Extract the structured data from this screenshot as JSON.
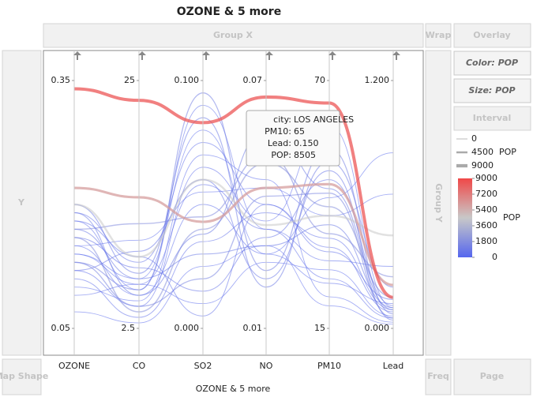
{
  "title": "OZONE & 5 more",
  "x_title": "OZONE & 5 more",
  "zones": {
    "group_x": "Group X",
    "wrap": "Wrap",
    "overlay": "Overlay",
    "color": "Color: POP",
    "size": "Size: POP",
    "interval": "Interval",
    "y": "Y",
    "group_y": "Group Y",
    "map_shape": "Map Shape",
    "freq": "Freq",
    "page": "Page"
  },
  "chart_data": {
    "type": "parallel",
    "axes": [
      {
        "name": "OZONE",
        "lim": [
          0.05,
          0.35
        ],
        "ticks": [
          0.35,
          0.05
        ]
      },
      {
        "name": "CO",
        "lim": [
          2.5,
          25
        ],
        "ticks": [
          25,
          2.5
        ]
      },
      {
        "name": "SO2",
        "lim": [
          0,
          0.1
        ],
        "ticks": [
          {
            "value": 0.1,
            "label": "0.100"
          },
          {
            "value": 0,
            "label": "0.000"
          }
        ]
      },
      {
        "name": "NO",
        "lim": [
          0.01,
          0.07
        ],
        "ticks": [
          0.07,
          0.01
        ]
      },
      {
        "name": "PM10",
        "lim": [
          15,
          70
        ],
        "ticks": [
          70,
          15
        ]
      },
      {
        "name": "Lead",
        "lim": [
          0,
          1.2
        ],
        "ticks": [
          {
            "value": 1.2,
            "label": "1.200"
          },
          {
            "value": 0,
            "label": "0.000"
          }
        ]
      }
    ],
    "color_scale": {
      "title": "POP",
      "colors": [
        "#5566ee",
        "#c8c8c8",
        "#f04848"
      ],
      "ticks": [
        9000,
        7200,
        5400,
        3600,
        1800,
        0
      ]
    },
    "size_legend": {
      "title": "POP",
      "values": [
        0,
        4500,
        9000
      ]
    },
    "series": [
      {
        "pop": 900,
        "values": [
          0.17,
          7.0,
          0.03,
          0.03,
          38,
          0.1
        ]
      },
      {
        "pop": 600,
        "values": [
          0.19,
          8.5,
          0.075,
          0.04,
          33,
          0.08
        ]
      },
      {
        "pop": 400,
        "values": [
          0.15,
          5.5,
          0.05,
          0.028,
          25,
          0.12
        ]
      },
      {
        "pop": 1500,
        "values": [
          0.13,
          4.5,
          0.02,
          0.042,
          45,
          0.05
        ]
      },
      {
        "pop": 300,
        "values": [
          0.18,
          6.0,
          0.09,
          0.034,
          30,
          0.3
        ]
      },
      {
        "pop": 800,
        "values": [
          0.12,
          9.5,
          0.06,
          0.022,
          50,
          0.04
        ]
      },
      {
        "pop": 2000,
        "values": [
          0.16,
          4.0,
          0.04,
          0.05,
          42,
          0.15
        ]
      },
      {
        "pop": 200,
        "values": [
          0.14,
          6.5,
          0.01,
          0.026,
          28,
          0.06
        ]
      },
      {
        "pop": 500,
        "values": [
          0.11,
          3.5,
          0.035,
          0.038,
          35,
          0.09
        ]
      },
      {
        "pop": 1100,
        "values": [
          0.2,
          7.5,
          0.085,
          0.02,
          52,
          0.2
        ]
      },
      {
        "pop": 250,
        "values": [
          0.1,
          5.0,
          0.07,
          0.046,
          22,
          0.03
        ]
      },
      {
        "pop": 700,
        "values": [
          0.16,
          8.0,
          0.015,
          0.032,
          48,
          0.11
        ]
      },
      {
        "pop": 150,
        "values": [
          0.15,
          10.5,
          0.055,
          0.044,
          40,
          0.65
        ]
      },
      {
        "pop": 1300,
        "values": [
          0.13,
          6.0,
          0.095,
          0.024,
          55,
          0.07
        ]
      },
      {
        "pop": 100,
        "values": [
          0.07,
          3.0,
          0.025,
          0.03,
          20,
          0.02
        ]
      },
      {
        "pop": 1800,
        "values": [
          0.17,
          12.0,
          0.045,
          0.052,
          36,
          0.25
        ]
      },
      {
        "pop": 350,
        "values": [
          0.12,
          4.5,
          0.065,
          0.036,
          60,
          0.1
        ]
      },
      {
        "pop": 120,
        "values": [
          0.14,
          7.0,
          0.08,
          0.028,
          44,
          0.85
        ]
      },
      {
        "pop": 650,
        "values": [
          0.18,
          9.0,
          0.005,
          0.04,
          32,
          0.14
        ]
      },
      {
        "pop": 950,
        "values": [
          0.19,
          5.5,
          0.038,
          0.058,
          46,
          0.09
        ]
      },
      {
        "pop": 450,
        "values": [
          0.09,
          6.5,
          0.058,
          0.034,
          26,
          0.05
        ]
      },
      {
        "pop": 4500,
        "values": [
          0.2,
          9.0,
          0.06,
          0.035,
          40,
          0.45
        ]
      },
      {
        "pop": 6000,
        "values": [
          0.22,
          14.4,
          0.043,
          0.044,
          47,
          0.21
        ]
      },
      {
        "pop": 8505,
        "values": [
          0.34,
          23.2,
          0.083,
          0.066,
          65,
          0.15
        ]
      }
    ]
  },
  "tooltip": {
    "rows": [
      {
        "label": "city:",
        "value": "LOS ANGELES"
      },
      {
        "label": "PM10:",
        "value": 65
      },
      {
        "label": "Lead:",
        "value": "0.150"
      },
      {
        "label": "POP:",
        "value": 8505
      }
    ]
  }
}
